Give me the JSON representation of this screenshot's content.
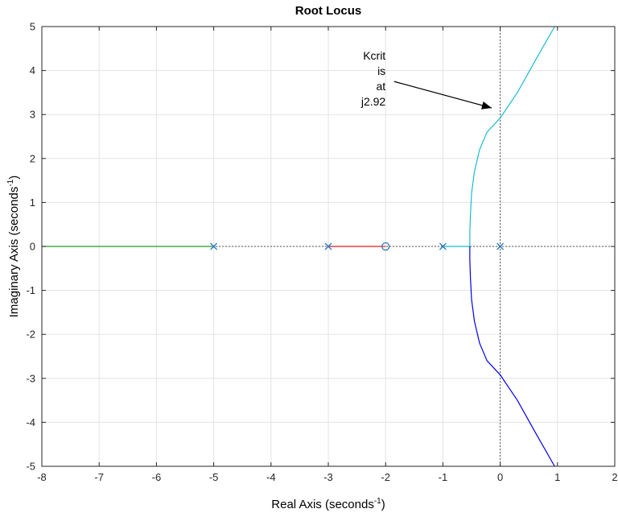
{
  "chart_data": {
    "type": "line",
    "title": "Root Locus",
    "xlabel": {
      "main": "Real Axis (seconds",
      "sup": "-1",
      "close": ")"
    },
    "ylabel": {
      "main": "Imaginary Axis (seconds",
      "sup": "-1",
      "close": ")"
    },
    "xlim": [
      -8,
      2
    ],
    "ylim": [
      -5,
      5
    ],
    "xticks": [
      -8,
      -7,
      -6,
      -5,
      -4,
      -3,
      -2,
      -1,
      0,
      1,
      2
    ],
    "yticks": [
      -5,
      -4,
      -3,
      -2,
      -1,
      0,
      1,
      2,
      3,
      4,
      5
    ],
    "grid": true,
    "poles": [
      [
        -5,
        0
      ],
      [
        -3,
        0
      ],
      [
        -1,
        0
      ],
      [
        0,
        0
      ]
    ],
    "zeros": [
      [
        -2,
        0
      ]
    ],
    "series": [
      {
        "color": "#1f9e1f",
        "points": [
          [
            -8,
            0
          ],
          [
            -5,
            0
          ]
        ]
      },
      {
        "color": "#e41a1c",
        "points": [
          [
            -3,
            0
          ],
          [
            -2,
            0
          ]
        ]
      },
      {
        "color": "#17becf",
        "points": [
          [
            -1,
            0
          ],
          [
            -0.53,
            0
          ]
        ]
      },
      {
        "color": "#17becf",
        "points": [
          [
            -0.53,
            0
          ],
          [
            -0.53,
            0.3
          ],
          [
            -0.52,
            0.7
          ],
          [
            -0.5,
            1.2
          ],
          [
            -0.45,
            1.7
          ],
          [
            -0.36,
            2.2
          ],
          [
            -0.23,
            2.6
          ],
          [
            0,
            2.92
          ],
          [
            0.3,
            3.5
          ],
          [
            0.6,
            4.2
          ],
          [
            0.95,
            5
          ]
        ]
      },
      {
        "color": "#0000ee",
        "points": [
          [
            -0.53,
            0
          ],
          [
            -0.53,
            -0.3
          ],
          [
            -0.52,
            -0.7
          ],
          [
            -0.5,
            -1.2
          ],
          [
            -0.45,
            -1.7
          ],
          [
            -0.36,
            -2.2
          ],
          [
            -0.23,
            -2.6
          ],
          [
            0,
            -2.92
          ],
          [
            0.3,
            -3.5
          ],
          [
            0.6,
            -4.2
          ],
          [
            0.95,
            -5
          ]
        ]
      }
    ],
    "reference_lines": {
      "vertical_x": 0,
      "horizontal_y": 0
    },
    "annotation": {
      "lines": [
        "Kcrit",
        "is",
        "at",
        "j2.92"
      ],
      "text_anchor": [
        -2.0,
        4.25
      ],
      "arrow_from": [
        -1.85,
        3.75
      ],
      "arrow_to": [
        -0.15,
        3.15
      ]
    }
  }
}
